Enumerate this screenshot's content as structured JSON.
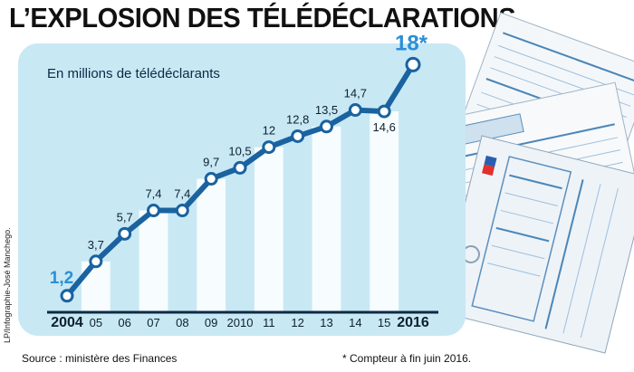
{
  "title": "L’EXPLOSION DES TÉLÉDÉCLARATIONS",
  "subtitle": "En millions de télédéclarants",
  "source": "Source : ministère des Finances",
  "footnote": "* Compteur à fin juin 2016.",
  "credit": "LP/Infographie-José Manchego.",
  "colors": {
    "line": "#1a62a0",
    "panel": "#c8e8f4",
    "bar": "#ffffff",
    "highlight": "#2b8fd6",
    "axis": "#0d2a45"
  },
  "chart_data": {
    "type": "line",
    "title": "L’EXPLOSION DES TÉLÉDÉCLARATIONS",
    "ylabel": "En millions de télédéclarants",
    "xlabel": "",
    "x": [
      "2004",
      "05",
      "06",
      "07",
      "08",
      "09",
      "2010",
      "11",
      "12",
      "13",
      "14",
      "15",
      "2016"
    ],
    "values": [
      1.2,
      3.7,
      5.7,
      7.4,
      7.4,
      9.7,
      10.5,
      12,
      12.8,
      13.5,
      14.7,
      14.6,
      18
    ],
    "data_labels": [
      "1,2",
      "3,7",
      "5,7",
      "7,4",
      "7,4",
      "9,7",
      "10,5",
      "12",
      "12,8",
      "13,5",
      "14,7",
      "14,6",
      "18*"
    ],
    "bars_on_odd_years": true,
    "ylim": [
      0,
      20
    ],
    "grid": false,
    "highlighted_points": [
      "2004",
      "2016"
    ]
  }
}
